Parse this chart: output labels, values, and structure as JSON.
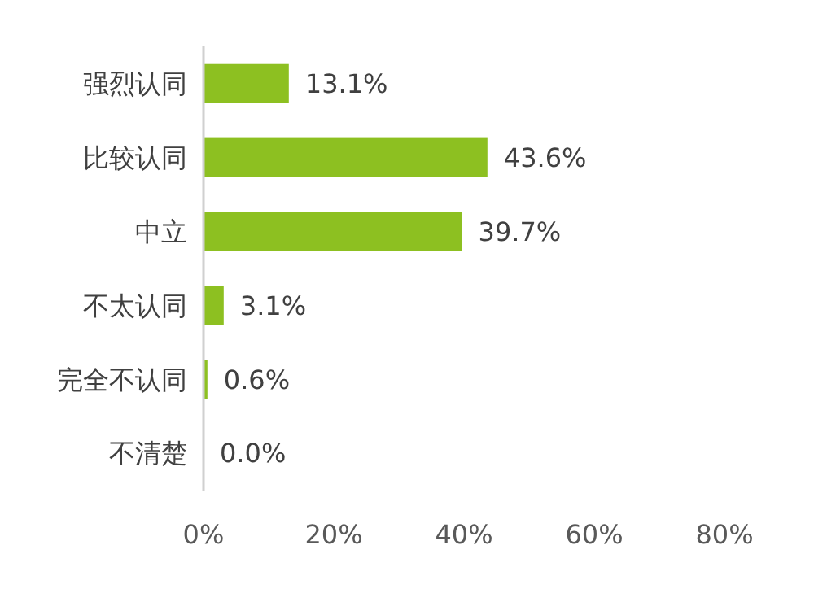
{
  "chart_data": {
    "type": "bar",
    "orientation": "horizontal",
    "categories": [
      "强烈认同",
      "比较认同",
      "中立",
      "不太认同",
      "完全不认同",
      "不清楚"
    ],
    "values": [
      13.1,
      43.6,
      39.7,
      3.1,
      0.6,
      0.0
    ],
    "value_labels": [
      "13.1%",
      "43.6%",
      "39.7%",
      "3.1%",
      "0.6%",
      "0.0%"
    ],
    "color": "#8dc021",
    "xlim": [
      0,
      80
    ],
    "xticks": [
      {
        "value": 0,
        "label": "0%"
      },
      {
        "value": 20,
        "label": "20%"
      },
      {
        "value": 40,
        "label": "40%"
      },
      {
        "value": 60,
        "label": "60%"
      },
      {
        "value": 80,
        "label": "80%"
      }
    ],
    "grid": false
  }
}
